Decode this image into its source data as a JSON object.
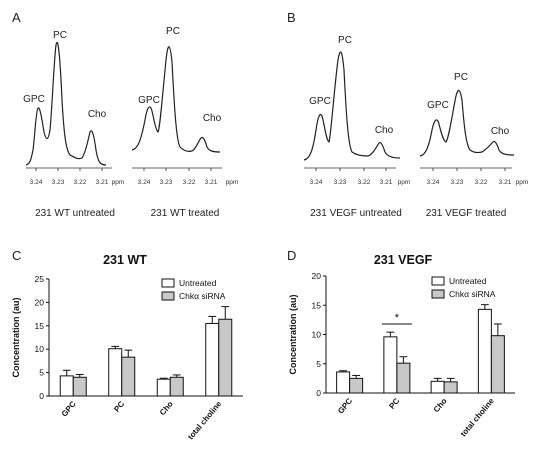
{
  "panels": {
    "A": "A",
    "B": "B",
    "C": "C",
    "D": "D"
  },
  "spectra_axis": {
    "ticks": [
      "3.24",
      "3.23",
      "3.22",
      "3.21"
    ],
    "unit": "ppm"
  },
  "spectra": [
    {
      "caption": "231 WT untreated",
      "peaks": {
        "GPC": "GPC",
        "PC": "PC",
        "Cho": "Cho"
      }
    },
    {
      "caption": "231 WT treated",
      "peaks": {
        "GPC": "GPC",
        "PC": "PC",
        "Cho": "Cho"
      }
    },
    {
      "caption": "231 VEGF untreated",
      "peaks": {
        "GPC": "GPC",
        "PC": "PC",
        "Cho": "Cho"
      }
    },
    {
      "caption": "231 VEGF treated",
      "peaks": {
        "GPC": "GPC",
        "PC": "PC",
        "Cho": "Cho"
      }
    }
  ],
  "colors": {
    "untreated_fill": "#ffffff",
    "treated_fill": "#c8c8c8",
    "stroke": "#111111"
  },
  "chart_data": [
    {
      "type": "bar",
      "title": "231 WT",
      "ylabel": "Concentration (au)",
      "categories": [
        "GPC",
        "PC",
        "Cho",
        "total choline"
      ],
      "ylim": [
        0,
        25
      ],
      "yticks": [
        "0",
        "5",
        "10",
        "15",
        "20",
        "25"
      ],
      "legend_position": "top-right",
      "series": [
        {
          "name": "Untreated",
          "values": [
            4.3,
            10.1,
            3.6,
            15.5
          ],
          "errors": [
            1.2,
            0.5,
            0.2,
            1.5
          ]
        },
        {
          "name": "Chkα siRNA",
          "values": [
            4.0,
            8.3,
            4.0,
            16.4
          ],
          "errors": [
            0.6,
            1.5,
            0.5,
            2.7
          ]
        }
      ]
    },
    {
      "type": "bar",
      "title": "231 VEGF",
      "ylabel": "Concentration (au)",
      "categories": [
        "GPC",
        "PC",
        "Cho",
        "total choline"
      ],
      "ylim": [
        0,
        20
      ],
      "yticks": [
        "0",
        "5",
        "10",
        "15",
        "20"
      ],
      "legend_position": "top-right",
      "annotation": "*",
      "series": [
        {
          "name": "Untreated",
          "values": [
            3.6,
            9.6,
            2.0,
            14.3
          ],
          "errors": [
            0.2,
            0.8,
            0.5,
            0.8
          ]
        },
        {
          "name": "Chkα siRNA",
          "values": [
            2.5,
            5.1,
            1.9,
            9.8
          ],
          "errors": [
            0.5,
            1.1,
            0.6,
            2.0
          ]
        }
      ]
    }
  ]
}
